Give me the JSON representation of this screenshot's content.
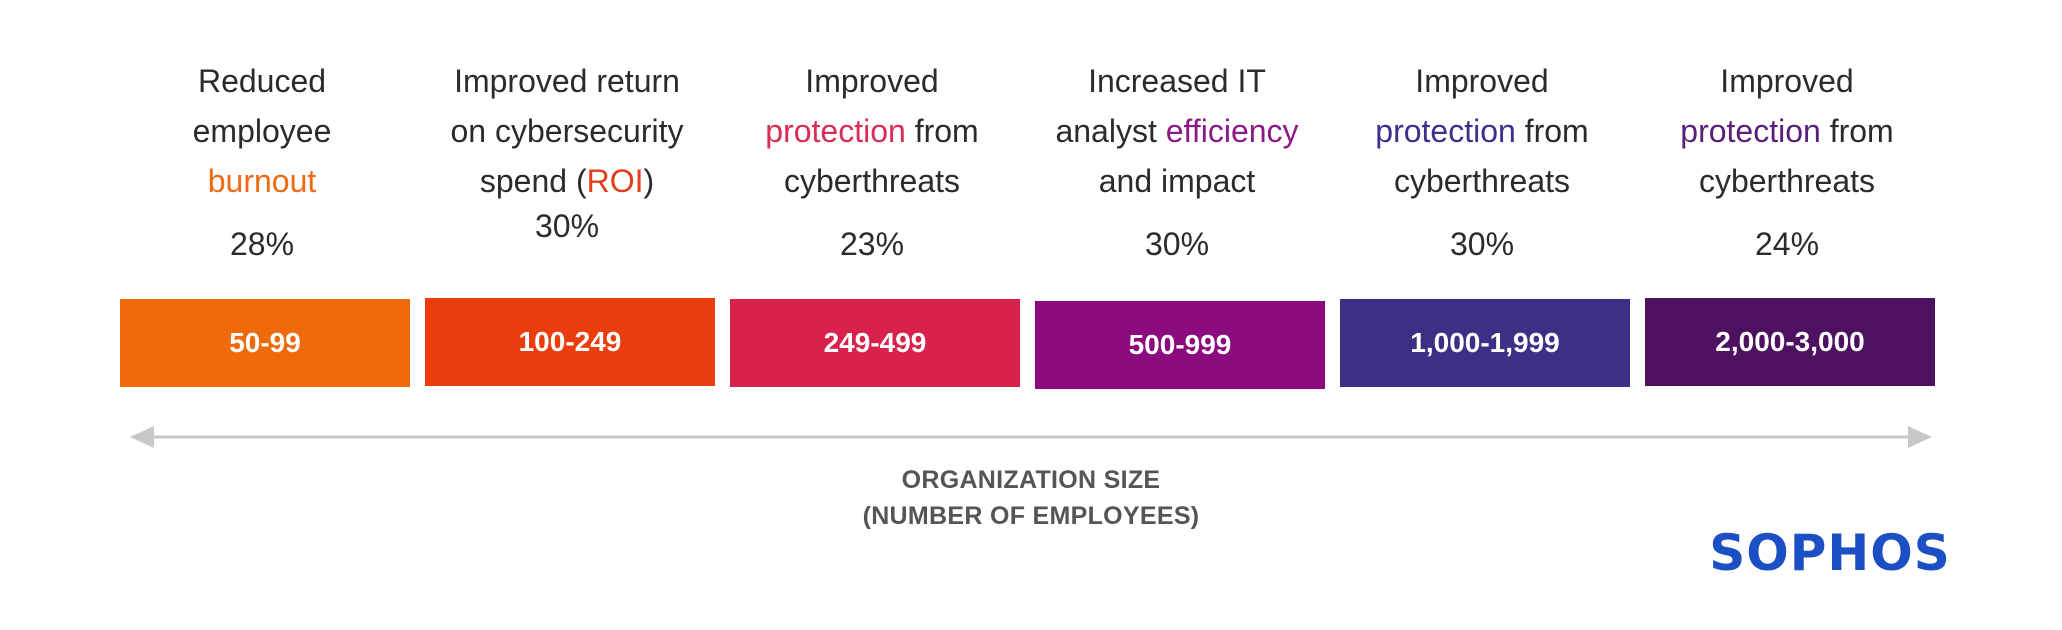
{
  "colors": {
    "burnout": "#ee6a14",
    "roi": "#e53c1e",
    "protection_red": "#d92d55",
    "efficiency": "#8c1a86",
    "protection_indigo": "#3d2f8c",
    "protection_purple": "#5a1f7a"
  },
  "columns": [
    {
      "lines": [
        {
          "segments": [
            {
              "text": "Reduced",
              "color": ""
            }
          ]
        },
        {
          "segments": [
            {
              "text": "employee",
              "color": ""
            }
          ]
        },
        {
          "segments": [
            {
              "text": "burnout",
              "color": "#ee6a14"
            }
          ]
        }
      ],
      "percent": "28%",
      "bar_label": "50-99",
      "bar_color": "#ee6a0a"
    },
    {
      "lines": [
        {
          "segments": [
            {
              "text": "Improved return",
              "color": ""
            }
          ]
        },
        {
          "segments": [
            {
              "text": "on cybersecurity",
              "color": ""
            }
          ]
        },
        {
          "segments": [
            {
              "text": "spend (",
              "color": ""
            },
            {
              "text": "ROI",
              "color": "#e53c1e"
            },
            {
              "text": ")",
              "color": ""
            }
          ]
        }
      ],
      "percent": "30%",
      "bar_label": "100-249",
      "bar_color": "#ea3c0c"
    },
    {
      "lines": [
        {
          "segments": [
            {
              "text": "Improved",
              "color": ""
            }
          ]
        },
        {
          "segments": [
            {
              "text": "protection",
              "color": "#d92d55"
            },
            {
              "text": " from",
              "color": ""
            }
          ]
        },
        {
          "segments": [
            {
              "text": "cyberthreats",
              "color": ""
            }
          ]
        }
      ],
      "percent": "23%",
      "bar_label": "249-499",
      "bar_color": "#d8214b"
    },
    {
      "lines": [
        {
          "segments": [
            {
              "text": "Increased IT",
              "color": ""
            }
          ]
        },
        {
          "segments": [
            {
              "text": "analyst ",
              "color": ""
            },
            {
              "text": "efficiency",
              "color": "#8c1a86"
            }
          ]
        },
        {
          "segments": [
            {
              "text": "and impact",
              "color": ""
            }
          ]
        }
      ],
      "percent": "30%",
      "bar_label": "500-999",
      "bar_color": "#8b0a7d"
    },
    {
      "lines": [
        {
          "segments": [
            {
              "text": "Improved",
              "color": ""
            }
          ]
        },
        {
          "segments": [
            {
              "text": "protection",
              "color": "#3d2f8c"
            },
            {
              "text": " from",
              "color": ""
            }
          ]
        },
        {
          "segments": [
            {
              "text": "cyberthreats",
              "color": ""
            }
          ]
        }
      ],
      "percent": "30%",
      "bar_label": "1,000-1,999",
      "bar_color": "#3d2f85"
    },
    {
      "lines": [
        {
          "segments": [
            {
              "text": "Improved",
              "color": ""
            }
          ]
        },
        {
          "segments": [
            {
              "text": "protection",
              "color": "#5a1f7a"
            },
            {
              "text": " from",
              "color": ""
            }
          ]
        },
        {
          "segments": [
            {
              "text": "cyberthreats",
              "color": ""
            }
          ]
        }
      ],
      "percent": "24%",
      "bar_label": "2,000-3,000",
      "bar_color": "#4e1160"
    }
  ],
  "axis": {
    "title_line1": "ORGANIZATION SIZE",
    "title_line2": "(NUMBER OF EMPLOYEES)",
    "color": "#c8c8c8"
  },
  "logo": {
    "text": "SOPHOS",
    "color": "#1c4fc4"
  }
}
